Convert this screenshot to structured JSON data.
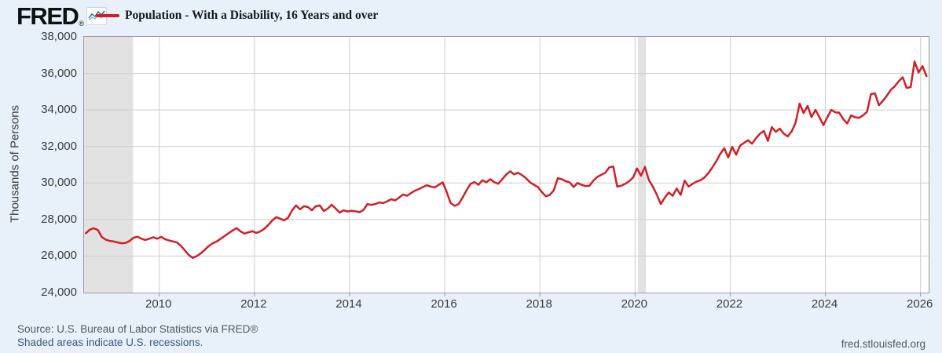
{
  "header": {
    "logo_text": "FRED",
    "logo_registered": "®",
    "legend": {
      "series_label": "Population - With a Disability, 16 Years and over",
      "series_color": "#d01f28"
    }
  },
  "chart_data": {
    "type": "line",
    "title": "Population - With a Disability, 16 Years and over",
    "ylabel": "Thousands of Persons",
    "y_range": [
      24000,
      38000
    ],
    "x_range": [
      2008.42,
      2026.17
    ],
    "grid": true,
    "legend_position": "top-left",
    "y_ticks": [
      {
        "label": "38,000",
        "value": 38000
      },
      {
        "label": "36,000",
        "value": 36000
      },
      {
        "label": "34,000",
        "value": 34000
      },
      {
        "label": "32,000",
        "value": 32000
      },
      {
        "label": "30,000",
        "value": 30000
      },
      {
        "label": "28,000",
        "value": 28000
      },
      {
        "label": "26,000",
        "value": 26000
      },
      {
        "label": "24,000",
        "value": 24000
      }
    ],
    "x_ticks": [
      {
        "label": "2010",
        "value": 2010
      },
      {
        "label": "2012",
        "value": 2012
      },
      {
        "label": "2014",
        "value": 2014
      },
      {
        "label": "2016",
        "value": 2016
      },
      {
        "label": "2018",
        "value": 2018
      },
      {
        "label": "2020",
        "value": 2020
      },
      {
        "label": "2022",
        "value": 2022
      },
      {
        "label": "2024",
        "value": 2024
      },
      {
        "label": "2026",
        "value": 2026
      }
    ],
    "recessions": [
      {
        "start": 2008.42,
        "end": 2009.45
      },
      {
        "start": 2020.06,
        "end": 2020.23
      }
    ],
    "colors": {
      "line": "#d01f28",
      "recession_band": "#e2e2e2",
      "gridline": "#cccccc",
      "axis": "#9b9b9b"
    },
    "series": [
      {
        "name": "Population - With a Disability, 16 Years and over",
        "units": "Thousands of Persons",
        "frequency": "monthly",
        "start": "2008-06",
        "end": "2026-02",
        "values": [
          27250,
          27450,
          27520,
          27430,
          27050,
          26900,
          26830,
          26800,
          26750,
          26700,
          26720,
          26820,
          27000,
          27060,
          26950,
          26880,
          26950,
          27030,
          26950,
          27050,
          26920,
          26850,
          26800,
          26740,
          26550,
          26300,
          26050,
          25900,
          26000,
          26150,
          26350,
          26550,
          26700,
          26800,
          26950,
          27100,
          27250,
          27400,
          27530,
          27350,
          27230,
          27300,
          27360,
          27270,
          27350,
          27490,
          27700,
          27950,
          28130,
          28050,
          27950,
          28100,
          28500,
          28770,
          28560,
          28730,
          28680,
          28510,
          28730,
          28770,
          28470,
          28600,
          28810,
          28600,
          28380,
          28500,
          28440,
          28480,
          28450,
          28400,
          28520,
          28850,
          28800,
          28850,
          28940,
          28900,
          29000,
          29110,
          29050,
          29200,
          29370,
          29300,
          29450,
          29580,
          29670,
          29780,
          29880,
          29800,
          29760,
          29900,
          30040,
          29500,
          28900,
          28750,
          28850,
          29200,
          29600,
          29950,
          30050,
          29900,
          30150,
          30040,
          30210,
          30040,
          29960,
          30210,
          30460,
          30640,
          30470,
          30560,
          30430,
          30260,
          30040,
          29900,
          29780,
          29500,
          29270,
          29350,
          29600,
          30260,
          30210,
          30100,
          30040,
          29780,
          30000,
          29900,
          29830,
          29850,
          30130,
          30340,
          30450,
          30560,
          30860,
          30900,
          29800,
          29850,
          29950,
          30100,
          30300,
          30800,
          30400,
          30880,
          30150,
          29800,
          29350,
          28850,
          29200,
          29480,
          29300,
          29700,
          29350,
          30130,
          29800,
          29950,
          30080,
          30150,
          30300,
          30550,
          30850,
          31200,
          31600,
          31900,
          31400,
          31980,
          31550,
          32050,
          32200,
          32340,
          32150,
          32450,
          32700,
          32850,
          32300,
          33060,
          32800,
          32980,
          32700,
          32550,
          32830,
          33300,
          34350,
          33830,
          34220,
          33610,
          34000,
          33600,
          33170,
          33600,
          34000,
          33870,
          33850,
          33500,
          33260,
          33700,
          33600,
          33570,
          33700,
          33900,
          34870,
          34910,
          34260,
          34500,
          34780,
          35100,
          35300,
          35570,
          35790,
          35200,
          35250,
          36650,
          36050,
          36400,
          35850
        ]
      }
    ]
  },
  "footer": {
    "source_line": "Source: U.S. Bureau of Labor Statistics via FRED®",
    "recession_note": "Shaded areas indicate U.S. recessions.",
    "site_url": "fred.stlouisfed.org"
  }
}
